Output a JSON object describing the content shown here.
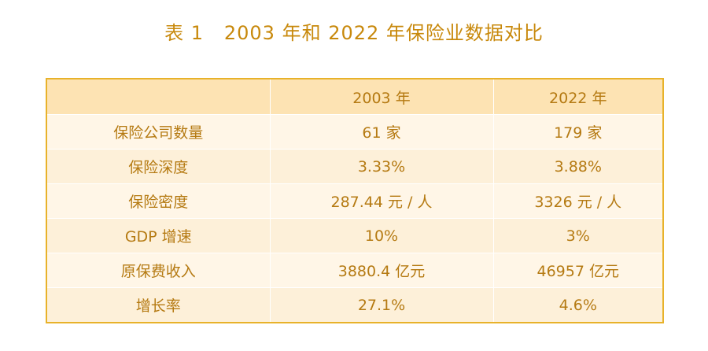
{
  "title": "表 1   2003 年和 2022 年保险业数据对比",
  "table": {
    "headers": [
      "",
      "2003 年",
      "2022 年"
    ],
    "rows": [
      {
        "label": "保险公司数量",
        "v2003": "61 家",
        "v2022": "179 家"
      },
      {
        "label": "保险深度",
        "v2003": "3.33%",
        "v2022": "3.88%"
      },
      {
        "label": "保险密度",
        "v2003": "287.44 元 / 人",
        "v2022": "3326 元 / 人"
      },
      {
        "label": "GDP 增速",
        "v2003": "10%",
        "v2022": "3%"
      },
      {
        "label": "原保费收入",
        "v2003": "3880.4 亿元",
        "v2022": "46957 亿元"
      },
      {
        "label": "增长率",
        "v2003": "27.1%",
        "v2022": "4.6%"
      }
    ]
  },
  "colors": {
    "title": "#c8890c",
    "text": "#b57a12",
    "border": "#e8b22a",
    "header_bg": "#fde3b3",
    "row_bg_light": "#fff6e7",
    "row_bg_alt": "#fdf0d9"
  }
}
